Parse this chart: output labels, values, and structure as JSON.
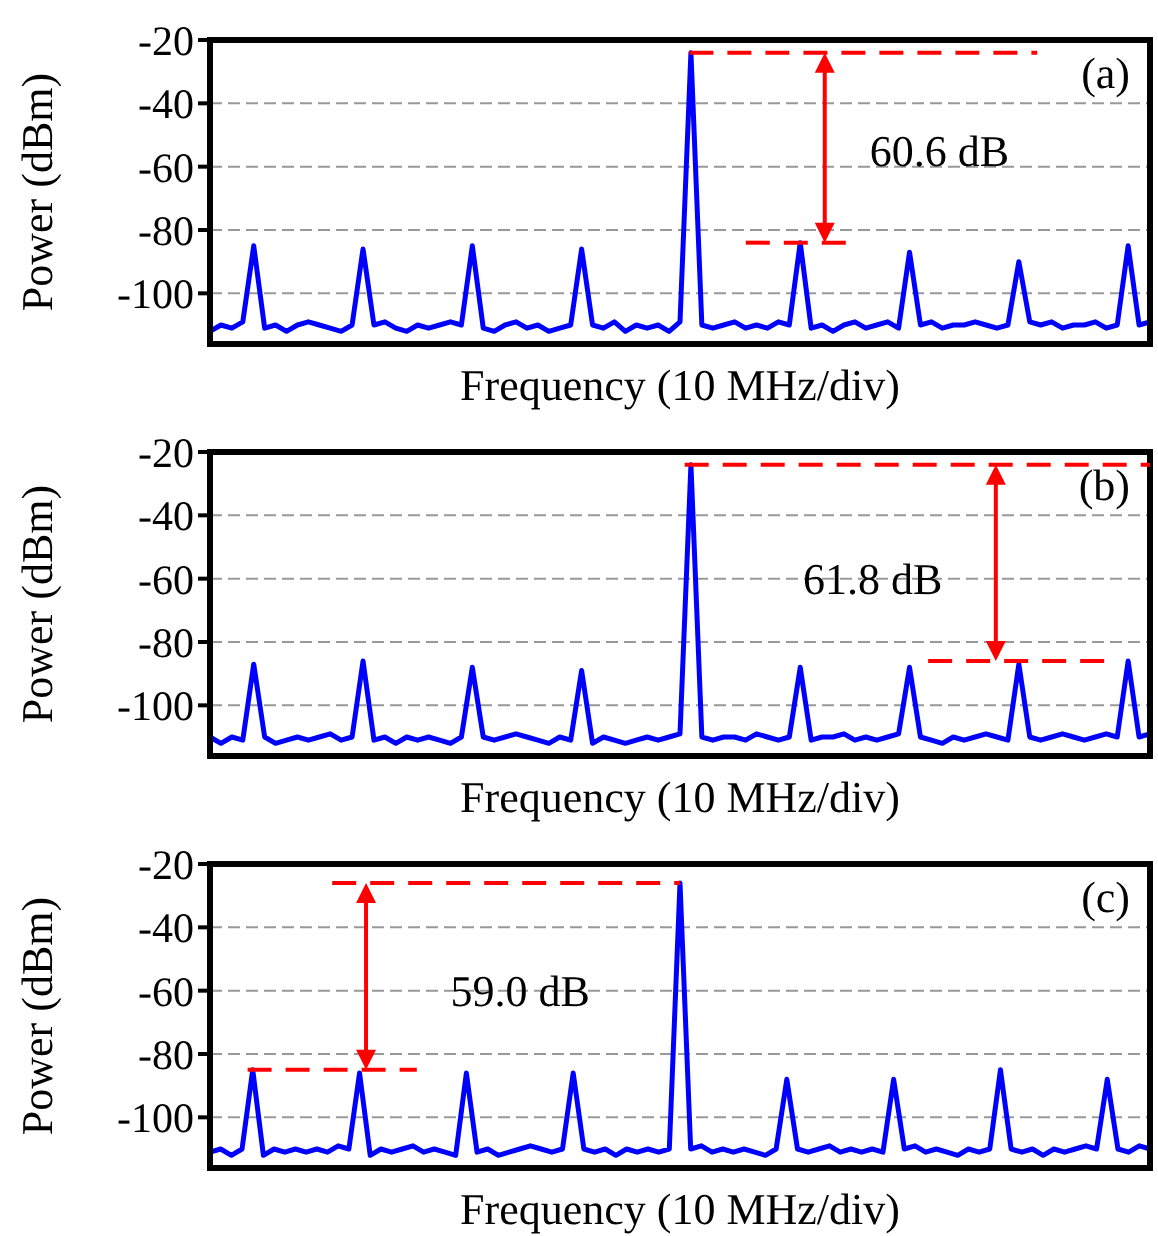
{
  "chart_data": [
    {
      "type": "line",
      "xlabel": "Frequency (10 MHz/div)",
      "ylabel": "Power (dBm)",
      "annotations": [
        "(a)",
        "60.6 dB"
      ],
      "tick_labels": "y",
      "grid": true,
      "ylim": [
        -116,
        -20
      ],
      "yticks": [
        -100,
        -80,
        -60,
        -40,
        -20
      ],
      "categories": [
        null,
        null,
        null,
        null,
        null,
        null,
        null,
        null,
        null,
        null,
        null,
        null,
        null,
        null,
        null,
        null,
        null,
        null,
        null,
        null,
        null,
        null,
        null,
        null,
        null,
        null,
        null,
        null,
        null,
        null,
        null,
        null,
        null,
        null,
        null,
        null,
        null,
        null,
        null,
        null,
        null,
        null,
        null,
        null,
        null,
        null,
        null,
        null,
        null,
        null,
        null,
        null,
        null,
        null,
        null,
        null,
        null,
        null,
        null,
        null,
        null,
        null,
        null,
        null,
        null,
        null,
        null,
        null,
        null,
        null,
        null,
        null,
        null,
        null,
        null,
        null,
        null,
        null,
        null,
        null,
        null,
        null,
        null,
        null,
        null,
        null,
        null
      ],
      "series": [
        {
          "color": "#0000ff",
          "values": [
            -112,
            -110,
            -111,
            -109,
            -85,
            -111,
            -110,
            -112,
            -110,
            -109,
            -110,
            -111,
            -112,
            -110,
            -86,
            -110,
            -109,
            -111,
            -112,
            -110,
            -111,
            -110,
            -109,
            -110,
            -85,
            -111,
            -112,
            -110,
            -109,
            -111,
            -110,
            -112,
            -111,
            -110,
            -86,
            -110,
            -111,
            -109,
            -112,
            -110,
            -111,
            -110,
            -112,
            -109,
            -24,
            -110,
            -111,
            -110,
            -109,
            -111,
            -110,
            -111,
            -109,
            -110,
            -84,
            -111,
            -110,
            -112,
            -110,
            -109,
            -111,
            -110,
            -109,
            -111,
            -87,
            -110,
            -109,
            -111,
            -110,
            -110,
            -109,
            -110,
            -111,
            -110,
            -90,
            -109,
            -110,
            -109,
            -111,
            -110,
            -110,
            -109,
            -111,
            -110,
            -85,
            -110,
            -109
          ]
        }
      ]
    },
    {
      "type": "line",
      "xlabel": "Frequency (10 MHz/div)",
      "ylabel": "Power (dBm)",
      "annotations": [
        "(b)",
        "61.8 dB"
      ],
      "tick_labels": "y",
      "grid": true,
      "ylim": [
        -116,
        -20
      ],
      "yticks": [
        -100,
        -80,
        -60,
        -40,
        -20
      ],
      "categories": [
        null,
        null,
        null,
        null,
        null,
        null,
        null,
        null,
        null,
        null,
        null,
        null,
        null,
        null,
        null,
        null,
        null,
        null,
        null,
        null,
        null,
        null,
        null,
        null,
        null,
        null,
        null,
        null,
        null,
        null,
        null,
        null,
        null,
        null,
        null,
        null,
        null,
        null,
        null,
        null,
        null,
        null,
        null,
        null,
        null,
        null,
        null,
        null,
        null,
        null,
        null,
        null,
        null,
        null,
        null,
        null,
        null,
        null,
        null,
        null,
        null,
        null,
        null,
        null,
        null,
        null,
        null,
        null,
        null,
        null,
        null,
        null,
        null,
        null,
        null,
        null,
        null,
        null,
        null,
        null,
        null,
        null,
        null,
        null,
        null,
        null,
        null
      ],
      "series": [
        {
          "color": "#0000ff",
          "values": [
            -110,
            -112,
            -110,
            -111,
            -87,
            -110,
            -112,
            -111,
            -110,
            -111,
            -110,
            -109,
            -111,
            -110,
            -86,
            -111,
            -110,
            -112,
            -110,
            -111,
            -110,
            -111,
            -112,
            -110,
            -88,
            -110,
            -111,
            -110,
            -109,
            -110,
            -111,
            -112,
            -110,
            -111,
            -89,
            -112,
            -110,
            -111,
            -112,
            -111,
            -110,
            -111,
            -110,
            -109,
            -24,
            -110,
            -111,
            -110,
            -110,
            -111,
            -109,
            -110,
            -111,
            -110,
            -88,
            -111,
            -110,
            -110,
            -109,
            -111,
            -110,
            -111,
            -110,
            -109,
            -88,
            -110,
            -111,
            -112,
            -110,
            -111,
            -110,
            -109,
            -110,
            -111,
            -87,
            -110,
            -111,
            -110,
            -109,
            -110,
            -111,
            -110,
            -109,
            -110,
            -86,
            -110,
            -109
          ]
        }
      ]
    },
    {
      "type": "line",
      "xlabel": "Frequency (10 MHz/div)",
      "ylabel": "Power (dBm)",
      "annotations": [
        "(c)",
        "59.0 dB"
      ],
      "tick_labels": "y",
      "grid": true,
      "ylim": [
        -116,
        -20
      ],
      "yticks": [
        -100,
        -80,
        -60,
        -40,
        -20
      ],
      "categories": [
        null,
        null,
        null,
        null,
        null,
        null,
        null,
        null,
        null,
        null,
        null,
        null,
        null,
        null,
        null,
        null,
        null,
        null,
        null,
        null,
        null,
        null,
        null,
        null,
        null,
        null,
        null,
        null,
        null,
        null,
        null,
        null,
        null,
        null,
        null,
        null,
        null,
        null,
        null,
        null,
        null,
        null,
        null,
        null,
        null,
        null,
        null,
        null,
        null,
        null,
        null,
        null,
        null,
        null,
        null,
        null,
        null,
        null,
        null,
        null,
        null,
        null,
        null,
        null,
        null,
        null,
        null,
        null,
        null,
        null,
        null,
        null,
        null,
        null,
        null,
        null,
        null,
        null,
        null,
        null,
        null,
        null,
        null,
        null,
        null,
        null,
        null,
        null,
        null
      ],
      "series": [
        {
          "color": "#0000ff",
          "values": [
            -111,
            -110,
            -112,
            -110,
            -85,
            -112,
            -110,
            -111,
            -110,
            -111,
            -110,
            -111,
            -109,
            -110,
            -86,
            -112,
            -110,
            -111,
            -110,
            -109,
            -111,
            -110,
            -111,
            -112,
            -86,
            -111,
            -110,
            -112,
            -111,
            -110,
            -109,
            -110,
            -111,
            -110,
            -86,
            -110,
            -111,
            -110,
            -112,
            -110,
            -111,
            -110,
            -111,
            -110,
            -26,
            -110,
            -109,
            -111,
            -110,
            -111,
            -110,
            -111,
            -112,
            -110,
            -88,
            -110,
            -111,
            -110,
            -109,
            -111,
            -110,
            -111,
            -110,
            -111,
            -88,
            -110,
            -109,
            -111,
            -110,
            -111,
            -112,
            -110,
            -111,
            -110,
            -85,
            -110,
            -111,
            -110,
            -112,
            -110,
            -111,
            -110,
            -109,
            -110,
            -88,
            -110,
            -111,
            -109,
            -110
          ]
        }
      ]
    }
  ]
}
